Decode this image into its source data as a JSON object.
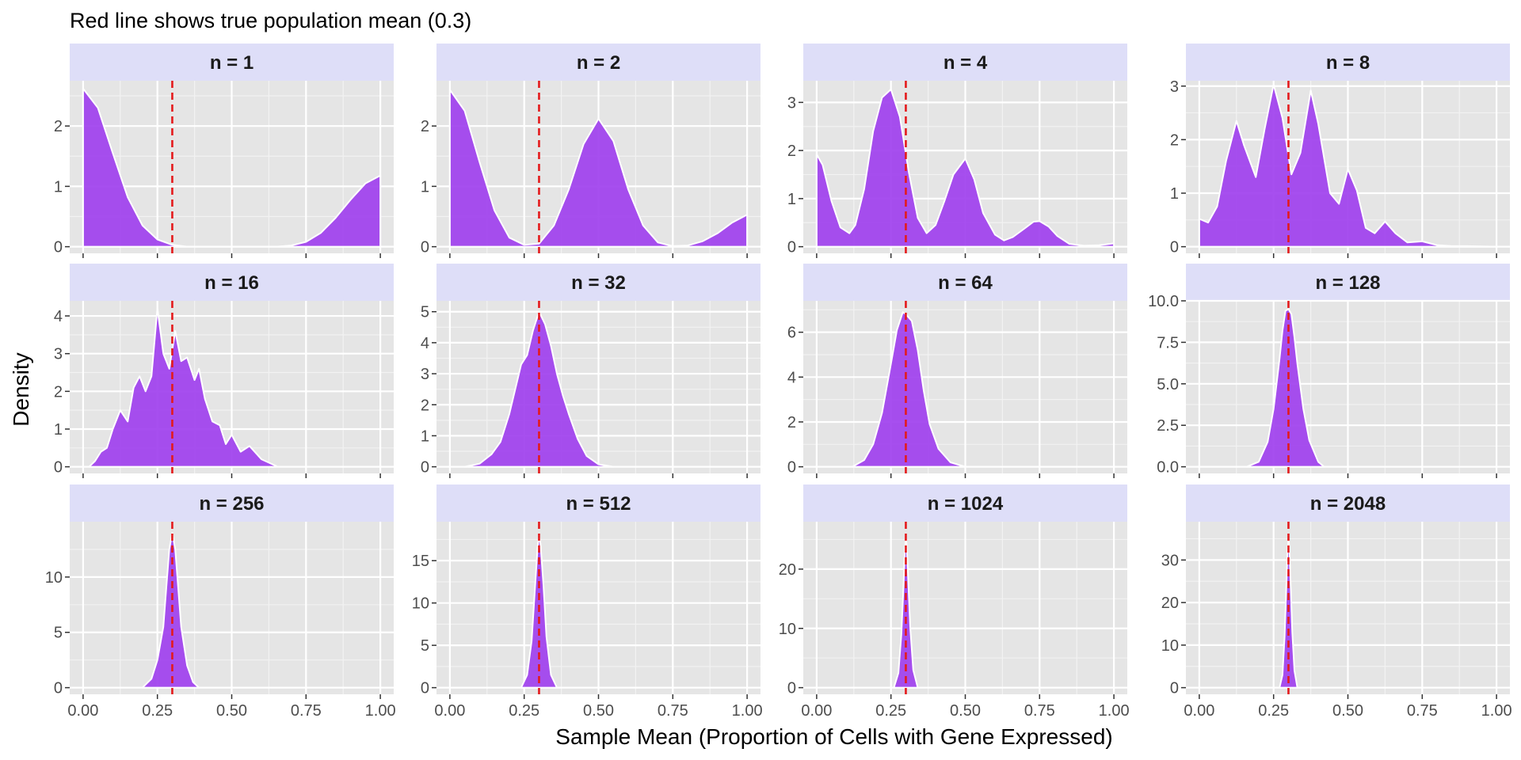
{
  "chart_data": {
    "type": "area",
    "title": "",
    "subtitle": "Red line shows true population mean (0.3)",
    "xlabel": "Sample Mean (Proportion of Cells with Gene Expressed)",
    "ylabel": "Density",
    "xlim": [
      0,
      1
    ],
    "x_ticks": [
      0,
      0.25,
      0.5,
      0.75,
      1
    ],
    "x_tick_labels": [
      "0.00",
      "0.25",
      "0.50",
      "0.75",
      "1.00"
    ],
    "reference_line": {
      "x": 0.3,
      "color": "#e41a1c",
      "style": "dashed"
    },
    "fill_color": "#a040ee",
    "outline_color": "#ffffff",
    "panel_background": "#e5e5e5",
    "strip_background": "#dedef8",
    "grid": true,
    "panels": [
      {
        "label": "n = 1",
        "ylim": [
          0,
          2.75
        ],
        "yticks": [
          0,
          1,
          2
        ],
        "ytick_labels": [
          "0",
          "1",
          "2"
        ],
        "x": [
          0.0,
          0.05,
          0.1,
          0.15,
          0.2,
          0.25,
          0.3,
          0.35,
          0.4,
          0.5,
          0.6,
          0.65,
          0.7,
          0.75,
          0.8,
          0.85,
          0.9,
          0.95,
          1.0
        ],
        "y": [
          2.62,
          2.3,
          1.55,
          0.82,
          0.35,
          0.12,
          0.03,
          0.0,
          0.0,
          0.0,
          0.0,
          0.0,
          0.02,
          0.08,
          0.23,
          0.48,
          0.78,
          1.05,
          1.18
        ]
      },
      {
        "label": "n = 2",
        "ylim": [
          0,
          2.75
        ],
        "yticks": [
          0,
          1,
          2
        ],
        "ytick_labels": [
          "0",
          "1",
          "2"
        ],
        "x": [
          0.0,
          0.05,
          0.1,
          0.15,
          0.2,
          0.25,
          0.3,
          0.35,
          0.4,
          0.45,
          0.5,
          0.55,
          0.6,
          0.65,
          0.7,
          0.75,
          0.8,
          0.85,
          0.9,
          0.95,
          1.0
        ],
        "y": [
          2.6,
          2.25,
          1.4,
          0.6,
          0.15,
          0.03,
          0.05,
          0.35,
          0.95,
          1.7,
          2.12,
          1.75,
          0.95,
          0.35,
          0.07,
          0.01,
          0.02,
          0.09,
          0.22,
          0.4,
          0.53
        ]
      },
      {
        "label": "n = 4",
        "ylim": [
          0,
          3.45
        ],
        "yticks": [
          0,
          1,
          2,
          3
        ],
        "ytick_labels": [
          "0",
          "1",
          "2",
          "3"
        ],
        "x": [
          0.0,
          0.02,
          0.05,
          0.08,
          0.11,
          0.13,
          0.16,
          0.19,
          0.22,
          0.25,
          0.28,
          0.31,
          0.34,
          0.37,
          0.4,
          0.43,
          0.46,
          0.5,
          0.53,
          0.56,
          0.6,
          0.63,
          0.66,
          0.7,
          0.73,
          0.75,
          0.78,
          0.81,
          0.85,
          0.9,
          0.95,
          1.0
        ],
        "y": [
          1.92,
          1.7,
          0.95,
          0.4,
          0.28,
          0.45,
          1.2,
          2.4,
          3.1,
          3.27,
          2.7,
          1.55,
          0.6,
          0.28,
          0.45,
          0.95,
          1.5,
          1.83,
          1.4,
          0.7,
          0.25,
          0.13,
          0.2,
          0.38,
          0.52,
          0.53,
          0.42,
          0.22,
          0.06,
          0.02,
          0.03,
          0.07
        ]
      },
      {
        "label": "n = 8",
        "ylim": [
          0,
          3.1
        ],
        "yticks": [
          0,
          1,
          2,
          3
        ],
        "ytick_labels": [
          "0",
          "1",
          "2",
          "3"
        ],
        "x": [
          0.0,
          0.03,
          0.06,
          0.09,
          0.125,
          0.15,
          0.19,
          0.22,
          0.25,
          0.28,
          0.31,
          0.34,
          0.375,
          0.4,
          0.44,
          0.47,
          0.5,
          0.53,
          0.56,
          0.59,
          0.625,
          0.66,
          0.7,
          0.75,
          0.8,
          0.85,
          0.9,
          1.0
        ],
        "y": [
          0.52,
          0.45,
          0.75,
          1.6,
          2.35,
          1.9,
          1.3,
          2.2,
          3.03,
          2.4,
          1.35,
          1.75,
          2.92,
          2.3,
          1.0,
          0.8,
          1.45,
          1.05,
          0.35,
          0.25,
          0.47,
          0.25,
          0.08,
          0.1,
          0.03,
          0.01,
          0.01,
          0.0
        ]
      },
      {
        "label": "n = 16",
        "ylim": [
          0,
          4.4
        ],
        "yticks": [
          0,
          1,
          2,
          3,
          4
        ],
        "ytick_labels": [
          "0",
          "1",
          "2",
          "3",
          "4"
        ],
        "x": [
          0.02,
          0.04,
          0.06,
          0.08,
          0.1,
          0.125,
          0.15,
          0.17,
          0.19,
          0.21,
          0.23,
          0.25,
          0.27,
          0.29,
          0.31,
          0.33,
          0.35,
          0.375,
          0.39,
          0.41,
          0.435,
          0.46,
          0.48,
          0.5,
          0.53,
          0.56,
          0.6,
          0.65
        ],
        "y": [
          0.0,
          0.15,
          0.4,
          0.5,
          1.0,
          1.5,
          1.2,
          2.1,
          2.4,
          2.0,
          2.4,
          4.2,
          3.0,
          2.6,
          3.6,
          2.8,
          2.9,
          2.3,
          2.6,
          1.8,
          1.2,
          1.1,
          0.6,
          0.85,
          0.4,
          0.55,
          0.2,
          0.02
        ]
      },
      {
        "label": "n = 32",
        "ylim": [
          0,
          5.35
        ],
        "yticks": [
          0,
          1,
          2,
          3,
          4,
          5
        ],
        "ytick_labels": [
          "0",
          "1",
          "2",
          "3",
          "4",
          "5"
        ],
        "x": [
          0.05,
          0.1,
          0.14,
          0.17,
          0.2,
          0.22,
          0.24,
          0.26,
          0.28,
          0.3,
          0.32,
          0.34,
          0.36,
          0.38,
          0.4,
          0.43,
          0.46,
          0.5,
          0.55
        ],
        "y": [
          0.0,
          0.1,
          0.4,
          0.8,
          1.7,
          2.5,
          3.3,
          3.6,
          4.4,
          5.0,
          4.6,
          3.9,
          3.0,
          2.3,
          1.7,
          0.9,
          0.35,
          0.08,
          0.0
        ]
      },
      {
        "label": "n = 64",
        "ylim": [
          0,
          7.4
        ],
        "yticks": [
          0,
          2,
          4,
          6
        ],
        "ytick_labels": [
          "0",
          "2",
          "4",
          "6"
        ],
        "x": [
          0.12,
          0.16,
          0.19,
          0.22,
          0.25,
          0.27,
          0.29,
          0.3,
          0.32,
          0.34,
          0.36,
          0.38,
          0.41,
          0.45,
          0.5
        ],
        "y": [
          0.0,
          0.3,
          1.0,
          2.4,
          4.6,
          6.1,
          6.9,
          6.8,
          6.5,
          5.2,
          3.4,
          1.9,
          0.8,
          0.2,
          0.0
        ]
      },
      {
        "label": "n = 128",
        "ylim": [
          0,
          10
        ],
        "yticks": [
          0,
          2.5,
          5,
          7.5,
          10
        ],
        "ytick_labels": [
          "0.0",
          "2.5",
          "5.0",
          "7.5",
          "10.0"
        ],
        "x": [
          0.16,
          0.2,
          0.23,
          0.25,
          0.27,
          0.28,
          0.29,
          0.3,
          0.31,
          0.32,
          0.33,
          0.35,
          0.37,
          0.4,
          0.42
        ],
        "y": [
          0.0,
          0.3,
          1.5,
          3.5,
          6.5,
          8.2,
          9.4,
          9.5,
          9.2,
          7.8,
          6.2,
          3.5,
          1.6,
          0.3,
          0.0
        ]
      },
      {
        "label": "n = 256",
        "ylim": [
          0,
          15
        ],
        "yticks": [
          0,
          5,
          10
        ],
        "ytick_labels": [
          "0",
          "5",
          "10"
        ],
        "x": [
          0.2,
          0.23,
          0.25,
          0.27,
          0.28,
          0.29,
          0.3,
          0.31,
          0.32,
          0.33,
          0.35,
          0.37,
          0.39
        ],
        "y": [
          0.0,
          0.8,
          2.5,
          5.5,
          9.0,
          12.5,
          14.0,
          12.5,
          9.0,
          5.5,
          2.0,
          0.5,
          0.0
        ]
      },
      {
        "label": "n = 512",
        "ylim": [
          0,
          19.6
        ],
        "yticks": [
          0,
          5,
          10,
          15
        ],
        "ytick_labels": [
          "0",
          "5",
          "10",
          "15"
        ],
        "x": [
          0.24,
          0.26,
          0.275,
          0.285,
          0.295,
          0.3,
          0.305,
          0.315,
          0.325,
          0.34,
          0.36
        ],
        "y": [
          0.0,
          1.5,
          5.5,
          11.0,
          16.5,
          18.0,
          17.0,
          12.0,
          6.0,
          1.5,
          0.0
        ]
      },
      {
        "label": "n = 1024",
        "ylim": [
          0,
          28
        ],
        "yticks": [
          0,
          10,
          20
        ],
        "ytick_labels": [
          "0",
          "10",
          "20"
        ],
        "x": [
          0.26,
          0.275,
          0.285,
          0.292,
          0.297,
          0.3,
          0.303,
          0.308,
          0.315,
          0.325,
          0.34
        ],
        "y": [
          0.0,
          2.5,
          9.0,
          17.0,
          23.5,
          25.0,
          24.0,
          18.0,
          10.0,
          3.0,
          0.0
        ]
      },
      {
        "label": "n = 2048",
        "ylim": [
          0,
          39
        ],
        "yticks": [
          0,
          10,
          20,
          30
        ],
        "ytick_labels": [
          "0",
          "10",
          "20",
          "30"
        ],
        "x": [
          0.27,
          0.28,
          0.287,
          0.293,
          0.297,
          0.3,
          0.303,
          0.307,
          0.313,
          0.32,
          0.33
        ],
        "y": [
          0.0,
          3.0,
          12.0,
          24.0,
          32.0,
          35.0,
          33.0,
          25.0,
          13.0,
          4.0,
          0.0
        ]
      }
    ]
  }
}
